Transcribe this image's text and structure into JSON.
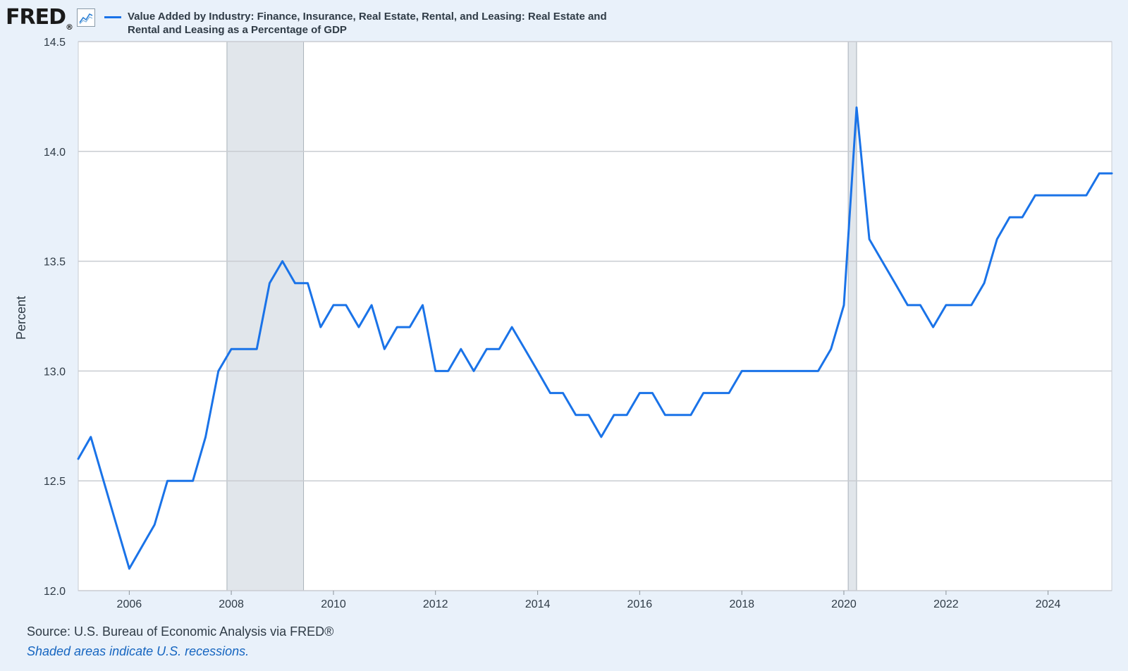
{
  "brand": {
    "logo": "FRED",
    "registered": "®"
  },
  "chart_data": {
    "type": "line",
    "title": "Value Added by Industry: Finance, Insurance, Real Estate, Rental, and Leasing: Real Estate and Rental and Leasing as a Percentage of GDP",
    "ylabel": "Percent",
    "xlabel": "",
    "ylim": [
      12.0,
      14.5
    ],
    "xlim": [
      "2005-01-01",
      "2025-04-01"
    ],
    "yticks": [
      "12.0",
      "12.5",
      "13.0",
      "13.5",
      "14.0",
      "14.5"
    ],
    "xticks": [
      "2006",
      "2008",
      "2010",
      "2012",
      "2014",
      "2016",
      "2018",
      "2020",
      "2022",
      "2024"
    ],
    "grid": true,
    "legend": "top-left",
    "colors": {
      "line": "#1a73e8",
      "recession": "#e1e6eb",
      "grid": "#c9ccd1"
    },
    "recessions": [
      {
        "start": "2007-12-01",
        "end": "2009-06-01"
      },
      {
        "start": "2020-02-01",
        "end": "2020-04-01"
      }
    ],
    "series": [
      {
        "name": "Value Added by Industry: Finance, Insurance, Real Estate, Rental, and Leasing: Real Estate and Rental and Leasing as a Percentage of GDP",
        "x": [
          "2005-01-01",
          "2005-04-01",
          "2005-07-01",
          "2005-10-01",
          "2006-01-01",
          "2006-04-01",
          "2006-07-01",
          "2006-10-01",
          "2007-01-01",
          "2007-04-01",
          "2007-07-01",
          "2007-10-01",
          "2008-01-01",
          "2008-04-01",
          "2008-07-01",
          "2008-10-01",
          "2009-01-01",
          "2009-04-01",
          "2009-07-01",
          "2009-10-01",
          "2010-01-01",
          "2010-04-01",
          "2010-07-01",
          "2010-10-01",
          "2011-01-01",
          "2011-04-01",
          "2011-07-01",
          "2011-10-01",
          "2012-01-01",
          "2012-04-01",
          "2012-07-01",
          "2012-10-01",
          "2013-01-01",
          "2013-04-01",
          "2013-07-01",
          "2013-10-01",
          "2014-01-01",
          "2014-04-01",
          "2014-07-01",
          "2014-10-01",
          "2015-01-01",
          "2015-04-01",
          "2015-07-01",
          "2015-10-01",
          "2016-01-01",
          "2016-04-01",
          "2016-07-01",
          "2016-10-01",
          "2017-01-01",
          "2017-04-01",
          "2017-07-01",
          "2017-10-01",
          "2018-01-01",
          "2018-04-01",
          "2018-07-01",
          "2018-10-01",
          "2019-01-01",
          "2019-04-01",
          "2019-07-01",
          "2019-10-01",
          "2020-01-01",
          "2020-04-01",
          "2020-07-01",
          "2020-10-01",
          "2021-01-01",
          "2021-04-01",
          "2021-07-01",
          "2021-10-01",
          "2022-01-01",
          "2022-04-01",
          "2022-07-01",
          "2022-10-01",
          "2023-01-01",
          "2023-04-01",
          "2023-07-01",
          "2023-10-01",
          "2024-01-01",
          "2024-04-01",
          "2024-07-01",
          "2024-10-01",
          "2025-01-01",
          "2025-04-01"
        ],
        "values": [
          12.6,
          12.7,
          12.5,
          12.3,
          12.1,
          12.2,
          12.3,
          12.5,
          12.5,
          12.5,
          12.7,
          13.0,
          13.1,
          13.1,
          13.1,
          13.4,
          13.5,
          13.4,
          13.4,
          13.2,
          13.3,
          13.3,
          13.2,
          13.3,
          13.1,
          13.2,
          13.2,
          13.3,
          13.0,
          13.0,
          13.1,
          13.0,
          13.1,
          13.1,
          13.2,
          13.1,
          13.0,
          12.9,
          12.9,
          12.8,
          12.8,
          12.7,
          12.8,
          12.8,
          12.9,
          12.9,
          12.8,
          12.8,
          12.8,
          12.9,
          12.9,
          12.9,
          13.0,
          13.0,
          13.0,
          13.0,
          13.0,
          13.0,
          13.0,
          13.1,
          13.3,
          14.2,
          13.6,
          13.5,
          13.4,
          13.3,
          13.3,
          13.2,
          13.3,
          13.3,
          13.3,
          13.4,
          13.6,
          13.7,
          13.7,
          13.8,
          13.8,
          13.8,
          13.8,
          13.8,
          13.9,
          13.9
        ]
      }
    ]
  },
  "footer": {
    "source": "Source: U.S. Bureau of Economic Analysis via FRED®",
    "note": "Shaded areas indicate U.S. recessions."
  }
}
